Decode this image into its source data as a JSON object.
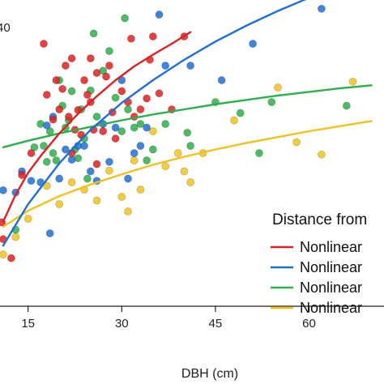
{
  "chart_data": {
    "type": "scatter",
    "xlabel": "DBH (cm)",
    "ylabel": "",
    "xlim": [
      10.5,
      72
    ],
    "ylim": [
      0,
      42
    ],
    "x_ticks": [
      15,
      30,
      45,
      60
    ],
    "x_tick_labels": [
      "15",
      "30",
      "45",
      "60"
    ],
    "y_tick_labels": [
      "40"
    ],
    "grid": false,
    "legend": {
      "title": "Distance from",
      "position": "right",
      "entries": [
        {
          "label": "Nonlinear",
          "color": "#e02020"
        },
        {
          "label": "Nonlinear",
          "color": "#1f6fd6"
        },
        {
          "label": "Nonlinear",
          "color": "#2bb04a"
        },
        {
          "label": "Nonlinear",
          "color": "#f2c21a"
        }
      ]
    },
    "series": [
      {
        "color": "#e02020",
        "points": [
          [
            10.8,
            11.5
          ],
          [
            11,
            9.2
          ],
          [
            12.3,
            6.6
          ],
          [
            14,
            18
          ],
          [
            15.5,
            21
          ],
          [
            17.5,
            36
          ],
          [
            18,
            29
          ],
          [
            19,
            25.6
          ],
          [
            19.5,
            31
          ],
          [
            20,
            27
          ],
          [
            20.5,
            29.8
          ],
          [
            21,
            33
          ],
          [
            21.5,
            26
          ],
          [
            22,
            21
          ],
          [
            22,
            34
          ],
          [
            22.5,
            24.2
          ],
          [
            23,
            26.9
          ],
          [
            23.5,
            23.5
          ],
          [
            24,
            31
          ],
          [
            24.5,
            29
          ],
          [
            25,
            28
          ],
          [
            25,
            34
          ],
          [
            25.5,
            24.2
          ],
          [
            26,
            32
          ],
          [
            26,
            19.5
          ],
          [
            27,
            24
          ],
          [
            27.5,
            31.5
          ],
          [
            28,
            33
          ],
          [
            28.5,
            26.6
          ],
          [
            29,
            23
          ],
          [
            30,
            29.5
          ],
          [
            31,
            28
          ],
          [
            31.5,
            36.7
          ],
          [
            32,
            26
          ],
          [
            33,
            27
          ],
          [
            34,
            28.5
          ],
          [
            34.5,
            33.8
          ],
          [
            35,
            37
          ],
          [
            36,
            29.2
          ],
          [
            38,
            27
          ],
          [
            40,
            37
          ]
        ],
        "fit": [
          [
            11,
            11.6
          ],
          [
            13,
            15.3
          ],
          [
            15,
            18.3
          ],
          [
            17,
            20.6
          ],
          [
            20,
            23.7
          ],
          [
            23,
            26.4
          ],
          [
            26,
            28.8
          ],
          [
            29,
            31
          ],
          [
            32,
            32.9
          ],
          [
            35,
            34.5
          ],
          [
            38,
            36
          ],
          [
            41,
            37.6
          ]
        ]
      },
      {
        "color": "#1f6fd6",
        "points": [
          [
            11,
            15.9
          ],
          [
            13,
            15.6
          ],
          [
            14,
            18.5
          ],
          [
            15.5,
            17.2
          ],
          [
            17,
            17
          ],
          [
            18,
            24.8
          ],
          [
            18.5,
            10
          ],
          [
            19,
            26
          ],
          [
            20,
            17.5
          ],
          [
            21,
            21.5
          ],
          [
            22,
            20.1
          ],
          [
            23,
            22
          ],
          [
            24,
            22
          ],
          [
            25,
            18.5
          ],
          [
            26,
            17.2
          ],
          [
            27,
            25
          ],
          [
            28,
            19.8
          ],
          [
            29,
            24.5
          ],
          [
            30,
            31
          ],
          [
            31,
            17.5
          ],
          [
            32,
            21
          ],
          [
            33,
            22
          ],
          [
            34,
            24.5
          ],
          [
            36,
            40
          ],
          [
            37,
            33
          ],
          [
            41,
            33
          ],
          [
            46,
            31
          ],
          [
            51,
            36
          ],
          [
            62,
            40.8
          ]
        ],
        "fit": [
          [
            11,
            8.3
          ],
          [
            15,
            14
          ],
          [
            20,
            19.6
          ],
          [
            25,
            24.2
          ],
          [
            30,
            27.9
          ],
          [
            35,
            31
          ],
          [
            40,
            33.8
          ],
          [
            45,
            36.3
          ],
          [
            50,
            38.5
          ],
          [
            55,
            40.5
          ],
          [
            60,
            42.3
          ],
          [
            65,
            44
          ],
          [
            70,
            45.5
          ]
        ]
      },
      {
        "color": "#2bb04a",
        "points": [
          [
            13,
            10.5
          ],
          [
            16,
            21.8
          ],
          [
            17,
            25
          ],
          [
            17.5,
            22
          ],
          [
            18,
            19.8
          ],
          [
            18.5,
            24
          ],
          [
            19,
            21
          ],
          [
            19.5,
            20
          ],
          [
            20,
            31
          ],
          [
            20.5,
            27.5
          ],
          [
            21,
            24.5
          ],
          [
            21.5,
            25.5
          ],
          [
            22,
            29.5
          ],
          [
            22.5,
            21.5
          ],
          [
            23,
            20.3
          ],
          [
            23.5,
            27
          ],
          [
            24,
            23
          ],
          [
            24.5,
            17.5
          ],
          [
            25,
            29.6
          ],
          [
            25.5,
            37.4
          ],
          [
            26,
            26
          ],
          [
            27,
            32.3
          ],
          [
            28,
            35
          ],
          [
            29,
            28.6
          ],
          [
            30,
            24
          ],
          [
            30.5,
            39.5
          ],
          [
            31,
            27
          ],
          [
            32,
            24.5
          ],
          [
            33,
            25
          ],
          [
            34,
            20
          ],
          [
            35,
            21.5
          ],
          [
            37,
            25
          ],
          [
            40.5,
            23.8
          ],
          [
            41,
            22
          ],
          [
            45,
            28
          ],
          [
            49,
            26.5
          ],
          [
            52,
            21
          ],
          [
            54,
            28
          ],
          [
            66,
            27.5
          ]
        ],
        "fit": [
          [
            11,
            21.8
          ],
          [
            15,
            22.7
          ],
          [
            20,
            23.7
          ],
          [
            25,
            24.6
          ],
          [
            30,
            25.5
          ],
          [
            35,
            26.3
          ],
          [
            40,
            27
          ],
          [
            45,
            27.7
          ],
          [
            50,
            28.3
          ],
          [
            55,
            28.9
          ],
          [
            60,
            29.4
          ],
          [
            65,
            29.9
          ],
          [
            70,
            30.3
          ]
        ]
      },
      {
        "color": "#f2c21a",
        "points": [
          [
            11,
            7.1
          ],
          [
            13,
            9.5
          ],
          [
            15,
            12
          ],
          [
            18,
            16.5
          ],
          [
            20,
            14
          ],
          [
            22,
            17
          ],
          [
            24,
            16
          ],
          [
            26,
            14.5
          ],
          [
            28,
            18.6
          ],
          [
            30,
            15
          ],
          [
            31,
            13
          ],
          [
            32,
            20
          ],
          [
            33,
            16
          ],
          [
            35,
            24
          ],
          [
            37,
            19.2
          ],
          [
            39,
            21
          ],
          [
            40,
            18.5
          ],
          [
            41,
            17
          ],
          [
            43,
            21
          ],
          [
            48,
            25.5
          ],
          [
            55,
            30
          ],
          [
            58,
            22.5
          ],
          [
            62,
            20.8
          ],
          [
            67,
            30.8
          ]
        ],
        "fit": [
          [
            11,
            10.9
          ],
          [
            15,
            13.1
          ],
          [
            20,
            15.1
          ],
          [
            25,
            16.7
          ],
          [
            30,
            18.1
          ],
          [
            35,
            19.4
          ],
          [
            40,
            20.5
          ],
          [
            45,
            21.5
          ],
          [
            50,
            22.4
          ],
          [
            55,
            23.2
          ],
          [
            60,
            24
          ],
          [
            65,
            24.7
          ],
          [
            70,
            25.4
          ]
        ]
      }
    ]
  }
}
